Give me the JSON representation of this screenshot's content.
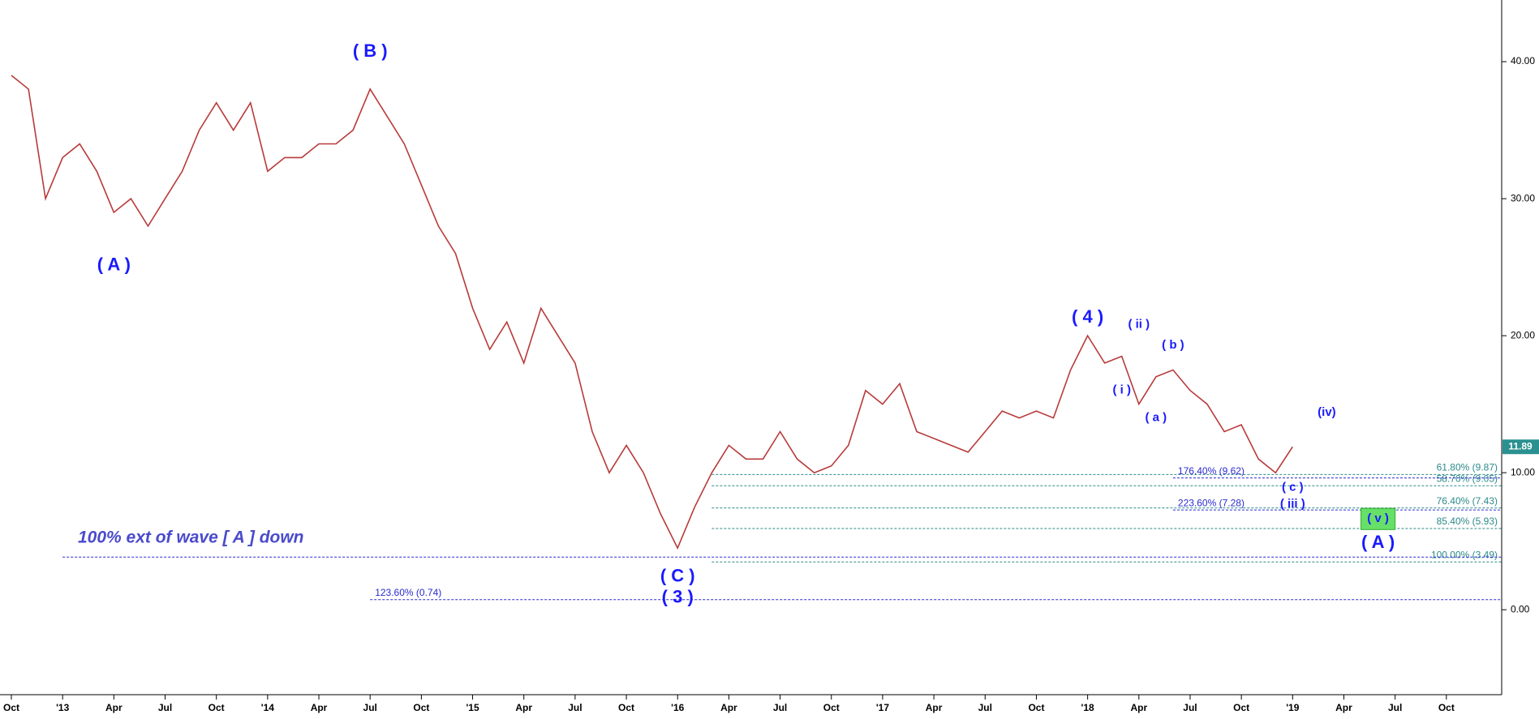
{
  "chart_data": {
    "type": "line",
    "x": [
      "2012-10",
      "2012-11",
      "2012-12",
      "2013-01",
      "2013-02",
      "2013-03",
      "2013-04",
      "2013-05",
      "2013-06",
      "2013-07",
      "2013-08",
      "2013-09",
      "2013-10",
      "2013-11",
      "2013-12",
      "2014-01",
      "2014-02",
      "2014-03",
      "2014-04",
      "2014-05",
      "2014-06",
      "2014-07",
      "2014-08",
      "2014-09",
      "2014-10",
      "2014-11",
      "2014-12",
      "2015-01",
      "2015-02",
      "2015-03",
      "2015-04",
      "2015-05",
      "2015-06",
      "2015-07",
      "2015-08",
      "2015-09",
      "2015-10",
      "2015-11",
      "2015-12",
      "2016-01",
      "2016-02",
      "2016-03",
      "2016-04",
      "2016-05",
      "2016-06",
      "2016-07",
      "2016-08",
      "2016-09",
      "2016-10",
      "2016-11",
      "2016-12",
      "2017-01",
      "2017-02",
      "2017-03",
      "2017-04",
      "2017-05",
      "2017-06",
      "2017-07",
      "2017-08",
      "2017-09",
      "2017-10",
      "2017-11",
      "2017-12",
      "2018-01",
      "2018-02",
      "2018-03",
      "2018-04",
      "2018-05",
      "2018-06",
      "2018-07",
      "2018-08",
      "2018-09",
      "2018-10",
      "2018-11",
      "2018-12",
      "2019-01"
    ],
    "series": [
      {
        "color": "#b83a3a",
        "values": [
          39,
          38,
          30,
          33,
          34,
          32,
          29,
          30,
          28,
          30,
          32,
          35,
          37,
          35,
          37,
          32,
          33,
          33,
          34,
          34,
          35,
          38,
          36,
          34,
          31,
          28,
          26,
          22,
          19,
          21,
          18,
          22,
          20,
          18,
          13,
          10,
          12,
          10,
          7,
          4.5,
          7.5,
          10,
          12,
          11,
          11,
          13,
          11,
          10,
          10.5,
          12,
          16,
          15,
          16.5,
          13,
          12.5,
          12,
          11.5,
          13,
          14.5,
          14,
          14.5,
          14,
          17.5,
          20,
          18,
          18.5,
          15,
          17,
          17.5,
          16,
          15,
          13,
          13.5,
          11,
          10,
          11.89
        ]
      }
    ],
    "last_price": {
      "value": 11.89,
      "label": "11.89"
    },
    "xlim": [
      "2012-10",
      "2020-01"
    ],
    "xticks": [
      {
        "value": "2012-10",
        "label": "Oct"
      },
      {
        "value": "2013-01",
        "label": "'13"
      },
      {
        "value": "2013-04",
        "label": "Apr"
      },
      {
        "value": "2013-07",
        "label": "Jul"
      },
      {
        "value": "2013-10",
        "label": "Oct"
      },
      {
        "value": "2014-01",
        "label": "'14"
      },
      {
        "value": "2014-04",
        "label": "Apr"
      },
      {
        "value": "2014-07",
        "label": "Jul"
      },
      {
        "value": "2014-10",
        "label": "Oct"
      },
      {
        "value": "2015-01",
        "label": "'15"
      },
      {
        "value": "2015-04",
        "label": "Apr"
      },
      {
        "value": "2015-07",
        "label": "Jul"
      },
      {
        "value": "2015-10",
        "label": "Oct"
      },
      {
        "value": "2016-01",
        "label": "'16"
      },
      {
        "value": "2016-04",
        "label": "Apr"
      },
      {
        "value": "2016-07",
        "label": "Jul"
      },
      {
        "value": "2016-10",
        "label": "Oct"
      },
      {
        "value": "2017-01",
        "label": "'17"
      },
      {
        "value": "2017-04",
        "label": "Apr"
      },
      {
        "value": "2017-07",
        "label": "Jul"
      },
      {
        "value": "2017-10",
        "label": "Oct"
      },
      {
        "value": "2018-01",
        "label": "'18"
      },
      {
        "value": "2018-04",
        "label": "Apr"
      },
      {
        "value": "2018-07",
        "label": "Jul"
      },
      {
        "value": "2018-10",
        "label": "Oct"
      },
      {
        "value": "2019-01",
        "label": "'19"
      },
      {
        "value": "2019-04",
        "label": "Apr"
      },
      {
        "value": "2019-07",
        "label": "Jul"
      },
      {
        "value": "2019-10",
        "label": "Oct"
      }
    ],
    "ylim": [
      -6.2,
      44.5
    ],
    "yticks": [
      {
        "value": 0,
        "label": "0.00"
      },
      {
        "value": 10,
        "label": "10.00"
      },
      {
        "value": 20,
        "label": "20.00"
      },
      {
        "value": 30,
        "label": "30.00"
      },
      {
        "value": 40,
        "label": "40.00"
      }
    ],
    "levels": [
      {
        "value": 9.87,
        "label": "61.80% (9.87)",
        "from": "2016-03",
        "color": "#2f8a8a"
      },
      {
        "value": 9.05,
        "label": "58.70% (9.05)",
        "from": "2016-03",
        "color": "#2f8a8a"
      },
      {
        "value": 7.43,
        "label": "76.40% (7.43)",
        "from": "2016-03",
        "color": "#2f8a8a"
      },
      {
        "value": 5.93,
        "label": "85.40% (5.93)",
        "from": "2016-03",
        "color": "#2f8a8a"
      },
      {
        "value": 3.49,
        "label": "100.00% (3.49)",
        "from": "2016-03",
        "color": "#2f8a8a"
      },
      {
        "value": 9.62,
        "label": "176.40% (9.62)",
        "from": "2018-06",
        "color": "#2a2ad0"
      },
      {
        "value": 7.28,
        "label": "223.60% (7.28)",
        "from": "2018-06",
        "color": "#2a2ad0"
      },
      {
        "value": 0.74,
        "label": "123.60% (0.74)",
        "from": "2014-07",
        "color": "#2a2ad0"
      },
      {
        "value": 3.84,
        "from": "2013-01",
        "color": "#2a2ad0"
      }
    ],
    "annotation": "100% ext of wave [ A ] down",
    "wave_labels": [
      {
        "text": "( B )",
        "x": "2014-07",
        "y": 40.7,
        "size": "large"
      },
      {
        "text": "( A )",
        "x": "2013-04",
        "y": 25.1,
        "size": "large"
      },
      {
        "text": "( C )",
        "x": "2016-01",
        "y": 2.4,
        "size": "large"
      },
      {
        "text": "( 3 )",
        "x": "2016-01",
        "y": 0.85,
        "size": "large"
      },
      {
        "text": "( 4 )",
        "x": "2018-01",
        "y": 21.3,
        "size": "large"
      },
      {
        "text": "( ii )",
        "x": "2018-04",
        "y": 20.8,
        "size": "small"
      },
      {
        "text": "( i )",
        "x": "2018-03",
        "y": 16,
        "size": "small"
      },
      {
        "text": "( a )",
        "x": "2018-05",
        "y": 14,
        "size": "small"
      },
      {
        "text": "( b )",
        "x": "2018-06",
        "y": 19.3,
        "size": "small"
      },
      {
        "text": "(iv)",
        "x": "2019-03",
        "y": 14.4,
        "size": "small"
      },
      {
        "text": "( c )",
        "x": "2019-01",
        "y": 8.9,
        "size": "small"
      },
      {
        "text": "( iii )",
        "x": "2019-01",
        "y": 7.7,
        "size": "small"
      },
      {
        "text": "( A )",
        "x": "2019-06",
        "y": 4.85,
        "size": "large"
      }
    ],
    "target_box": {
      "text": "( v )",
      "from": "2019-05",
      "to": "2019-07",
      "top": 7.4,
      "bottom": 5.85,
      "color": "#66e066"
    }
  }
}
